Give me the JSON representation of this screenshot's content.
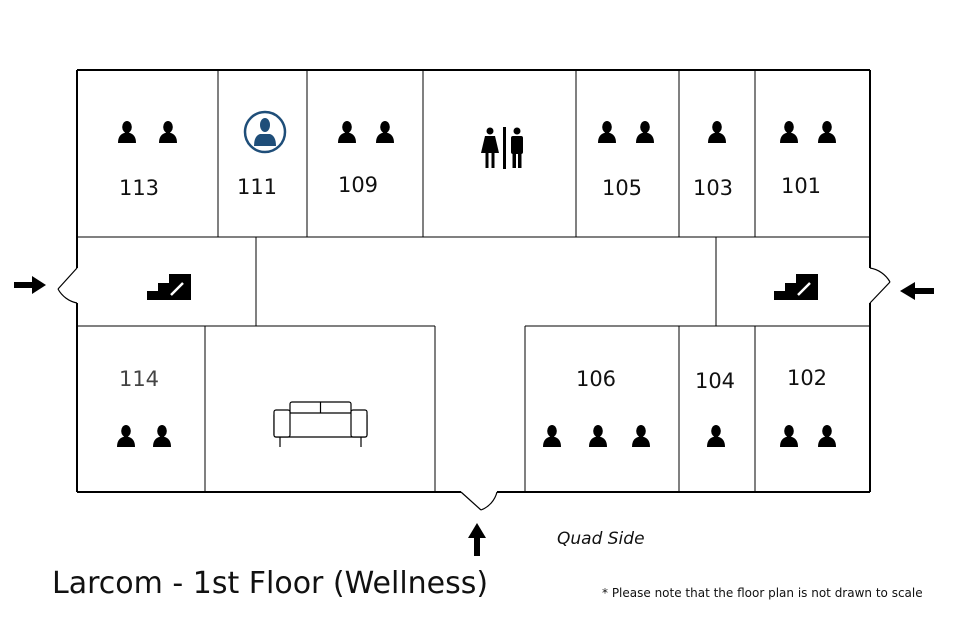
{
  "title": "Larcom - 1st Floor (Wellness)",
  "side_label": "Quad Side",
  "note": "* Please note that the floor plan is not drawn to scale",
  "rooms": [
    {
      "number": "113",
      "occupancy": 2
    },
    {
      "number": "111",
      "occupancy": 1,
      "type": "single-highlighted"
    },
    {
      "number": "109",
      "occupancy": 2
    },
    {
      "number": "105",
      "occupancy": 2
    },
    {
      "number": "103",
      "occupancy": 1
    },
    {
      "number": "101",
      "occupancy": 2
    },
    {
      "number": "114",
      "occupancy": 2
    },
    {
      "number": "106",
      "occupancy": 3
    },
    {
      "number": "104",
      "occupancy": 1
    },
    {
      "number": "102",
      "occupancy": 2
    }
  ],
  "features": [
    "restroom-icon",
    "stairs-icon",
    "stairs-icon",
    "lounge-sofa-icon"
  ],
  "entrances": [
    "west-entrance-arrow",
    "east-entrance-arrow",
    "south-entrance-arrow"
  ],
  "colors": {
    "walls": "#000000",
    "accent": "#1f4e79",
    "background": "#ffffff"
  }
}
